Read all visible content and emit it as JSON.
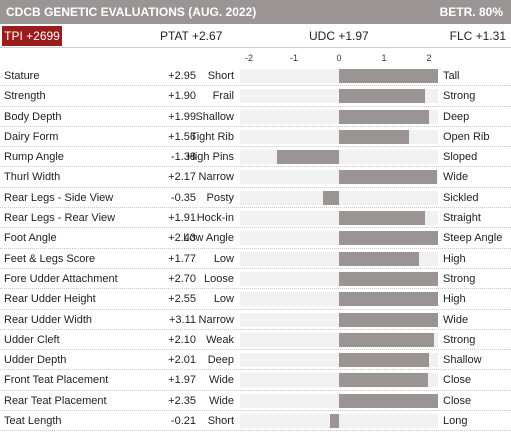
{
  "header": {
    "title": "CDCB GENETIC EVALUATIONS (AUG. 2022)",
    "reliability": "BETR. 80%"
  },
  "summary": {
    "tpi": "TPI +2699",
    "ptat": "PTAT +2.67",
    "udc": "UDC +1.97",
    "flc": "FLC +1.31"
  },
  "colors": {
    "header_bg": "#9a9495",
    "bar": "#9a9495",
    "tpi_bg": "#9b1c1c",
    "track": "#f1f1f1"
  },
  "chart_data": {
    "type": "bar",
    "orientation": "horizontal",
    "xlim": [
      -2.2,
      2.2
    ],
    "tick_labels": [
      "-2",
      "-1",
      "0",
      "1",
      "2"
    ],
    "tick_values": [
      -2,
      -1,
      0,
      1,
      2
    ],
    "traits": [
      {
        "name": "Stature",
        "value_label": "+2.95",
        "value": 2.95,
        "low": "Short",
        "high": "Tall"
      },
      {
        "name": "Strength",
        "value_label": "+1.90",
        "value": 1.9,
        "low": "Frail",
        "high": "Strong"
      },
      {
        "name": "Body Depth",
        "value_label": "+1.99",
        "value": 1.99,
        "low": "Shallow",
        "high": "Deep"
      },
      {
        "name": "Dairy Form",
        "value_label": "+1.56",
        "value": 1.56,
        "low": "Tight Rib",
        "high": "Open Rib"
      },
      {
        "name": "Rump Angle",
        "value_label": "-1.38",
        "value": -1.38,
        "low": "High Pins",
        "high": "Sloped"
      },
      {
        "name": "Thurl Width",
        "value_label": "+2.17",
        "value": 2.17,
        "low": "Narrow",
        "high": "Wide"
      },
      {
        "name": "Rear Legs - Side View",
        "value_label": "-0.35",
        "value": -0.35,
        "low": "Posty",
        "high": "Sickled"
      },
      {
        "name": "Rear Legs - Rear View",
        "value_label": "+1.91",
        "value": 1.91,
        "low": "Hock-in",
        "high": "Straight"
      },
      {
        "name": "Foot Angle",
        "value_label": "+2.43",
        "value": 2.43,
        "low": "Low Angle",
        "high": "Steep Angle"
      },
      {
        "name": "Feet & Legs Score",
        "value_label": "+1.77",
        "value": 1.77,
        "low": "Low",
        "high": "High"
      },
      {
        "name": "Fore Udder Attachment",
        "value_label": "+2.70",
        "value": 2.7,
        "low": "Loose",
        "high": "Strong"
      },
      {
        "name": "Rear Udder Height",
        "value_label": "+2.55",
        "value": 2.55,
        "low": "Low",
        "high": "High"
      },
      {
        "name": "Rear Udder Width",
        "value_label": "+3.11",
        "value": 3.11,
        "low": "Narrow",
        "high": "Wide"
      },
      {
        "name": "Udder Cleft",
        "value_label": "+2.10",
        "value": 2.1,
        "low": "Weak",
        "high": "Strong"
      },
      {
        "name": "Udder Depth",
        "value_label": "+2.01",
        "value": 2.01,
        "low": "Deep",
        "high": "Shallow"
      },
      {
        "name": "Front Teat Placement",
        "value_label": "+1.97",
        "value": 1.97,
        "low": "Wide",
        "high": "Close"
      },
      {
        "name": "Rear Teat Placement",
        "value_label": "+2.35",
        "value": 2.35,
        "low": "Wide",
        "high": "Close"
      },
      {
        "name": "Teat Length",
        "value_label": "-0.21",
        "value": -0.21,
        "low": "Short",
        "high": "Long"
      }
    ]
  }
}
